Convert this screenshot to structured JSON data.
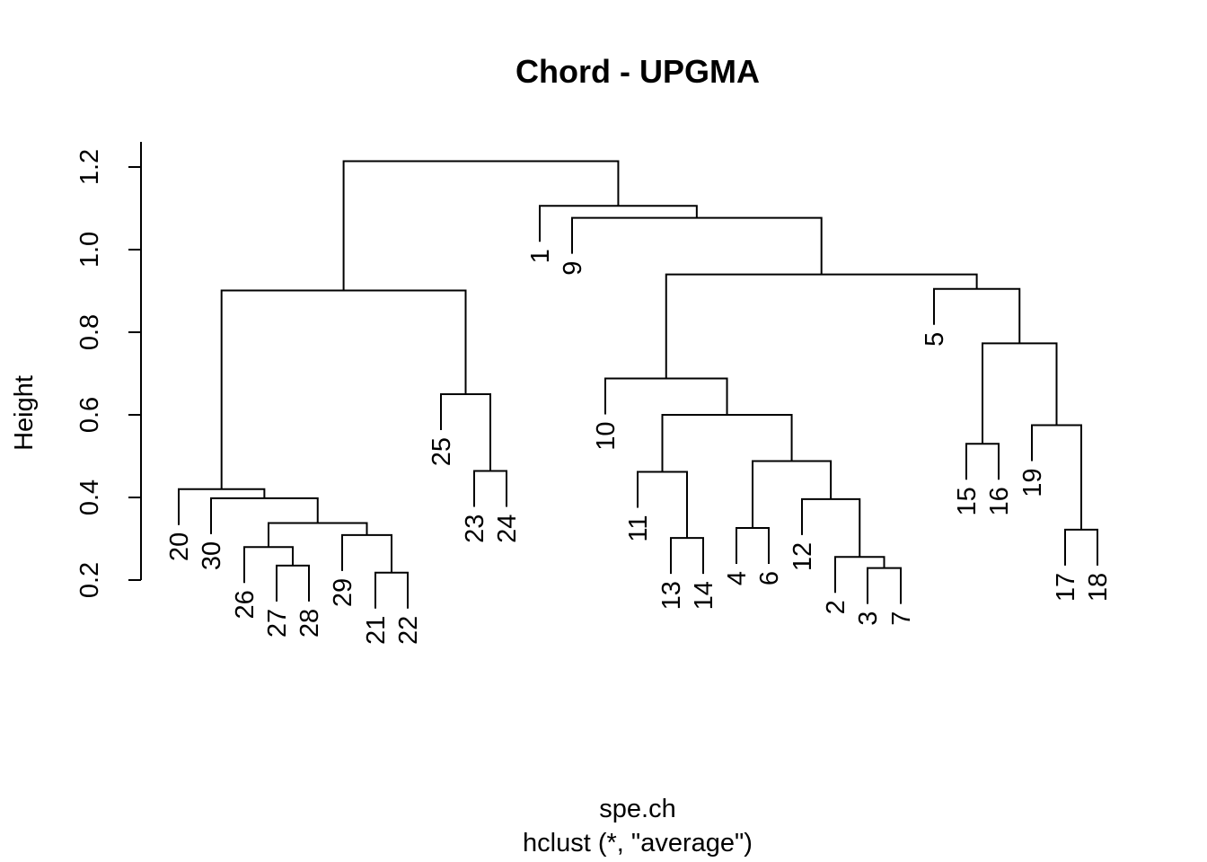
{
  "chart_data": {
    "type": "dendrogram",
    "title": "Chord - UPGMA",
    "xlabel": "spe.ch",
    "subtitle": "hclust (*, \"average\")",
    "ylabel": "Height",
    "ylim": [
      0.2,
      1.2
    ],
    "yticks": [
      "0.2",
      "0.4",
      "0.6",
      "0.8",
      "1.0",
      "1.2"
    ],
    "leaf_order": [
      "20",
      "30",
      "26",
      "27",
      "28",
      "29",
      "21",
      "22",
      "25",
      "23",
      "24",
      "1",
      "9",
      "10",
      "11",
      "13",
      "14",
      "4",
      "6",
      "12",
      "2",
      "3",
      "7",
      "5",
      "15",
      "16",
      "19",
      "17",
      "18"
    ],
    "merges": [
      {
        "a": "21",
        "b": "22",
        "h": 0.218
      },
      {
        "a": "3",
        "b": "7",
        "h": 0.229
      },
      {
        "a": "27",
        "b": "28",
        "h": 0.235
      },
      {
        "a": "2",
        "b": "(3,7)",
        "h": 0.256
      },
      {
        "a": "26",
        "b": "(27,28)",
        "h": 0.28
      },
      {
        "a": "13",
        "b": "14",
        "h": 0.302
      },
      {
        "a": "29",
        "b": "(21,22)",
        "h": 0.309
      },
      {
        "a": "17",
        "b": "18",
        "h": 0.322
      },
      {
        "a": "4",
        "b": "6",
        "h": 0.326
      },
      {
        "a": "(26,27,28)",
        "b": "(29,21,22)",
        "h": 0.338
      },
      {
        "a": "12",
        "b": "(2,3,7)",
        "h": 0.396
      },
      {
        "a": "30",
        "b": "(26-22)",
        "h": 0.398
      },
      {
        "a": "20",
        "b": "(30-22)",
        "h": 0.42
      },
      {
        "a": "11",
        "b": "(13,14)",
        "h": 0.462
      },
      {
        "a": "23",
        "b": "24",
        "h": 0.464
      },
      {
        "a": "(4,6)",
        "b": "(12,2,3,7)",
        "h": 0.488
      },
      {
        "a": "15",
        "b": "16",
        "h": 0.53
      },
      {
        "a": "19",
        "b": "(17,18)",
        "h": 0.575
      },
      {
        "a": "(11,13,14)",
        "b": "(4-7)",
        "h": 0.6
      },
      {
        "a": "25",
        "b": "(23,24)",
        "h": 0.65
      },
      {
        "a": "10",
        "b": "(11-7)",
        "h": 0.688
      },
      {
        "a": "(15,16)",
        "b": "(19,17,18)",
        "h": 0.773
      },
      {
        "a": "20-group",
        "b": "25-group",
        "h": 0.901
      },
      {
        "a": "5",
        "b": "(15-18)",
        "h": 0.905
      },
      {
        "a": "(10-7)",
        "b": "(5-18)",
        "h": 0.94
      },
      {
        "a": "9",
        "b": "(10-18)",
        "h": 1.077
      },
      {
        "a": "1",
        "b": "(9-18)",
        "h": 1.106
      },
      {
        "a": "(20-24)",
        "b": "(1-18)",
        "h": 1.214
      }
    ]
  }
}
